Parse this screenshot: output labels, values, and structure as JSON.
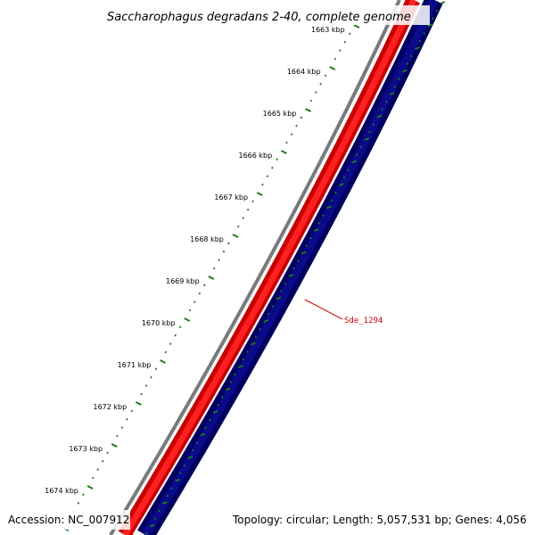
{
  "title": "Saccharophagus degradans 2-40, complete genome",
  "kbp_labels": [
    "1663 kbp",
    "1664 kbp",
    "1665 kbp",
    "1666 kbp",
    "1667 kbp",
    "1668 kbp",
    "1669 kbp",
    "1670 kbp",
    "1671 kbp",
    "1672 kbp",
    "1673 kbp",
    "1674 kbp"
  ],
  "gene_label": {
    "text": "Sde_1294",
    "color": "#cc0000"
  },
  "tracks": [
    {
      "name": "gc-content",
      "color": "#808080"
    },
    {
      "name": "forward-strand",
      "color": "#ff0000"
    },
    {
      "name": "reverse-strand",
      "color": "#00007a"
    },
    {
      "name": "scale",
      "color": "#1a7a1a"
    }
  ],
  "footer": {
    "accession": "Accession: NC_007912",
    "summary": "Topology: circular; Length: 5,057,531 bp; Genes: 4,056"
  }
}
